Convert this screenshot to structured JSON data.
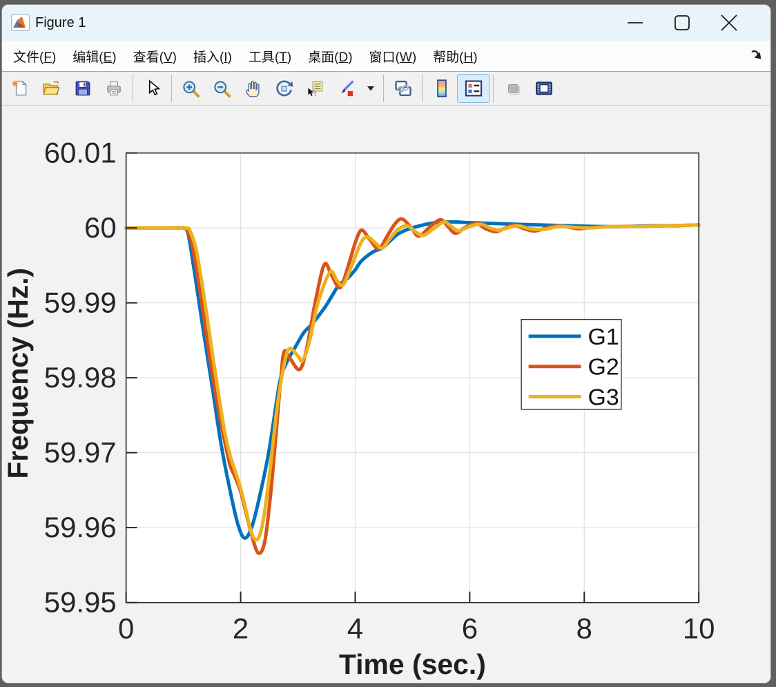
{
  "window": {
    "title": "Figure 1",
    "controls": [
      "minimize",
      "maximize",
      "close"
    ]
  },
  "menu": {
    "items": [
      {
        "label": "文件",
        "key": "F"
      },
      {
        "label": "编辑",
        "key": "E"
      },
      {
        "label": "查看",
        "key": "V"
      },
      {
        "label": "插入",
        "key": "I"
      },
      {
        "label": "工具",
        "key": "T"
      },
      {
        "label": "桌面",
        "key": "D"
      },
      {
        "label": "窗口",
        "key": "W"
      },
      {
        "label": "帮助",
        "key": "H"
      }
    ],
    "dock_arrow_icon": "dock-figure-arrow-icon"
  },
  "toolbar": {
    "icons": [
      "new-figure",
      "open-file",
      "save-figure",
      "print-figure",
      "edit-plot-pointer",
      "zoom-in",
      "zoom-out",
      "pan-hand",
      "rotate-3d",
      "data-cursor",
      "brush-data",
      "brush-dropdown",
      "link-plot",
      "insert-colorbar",
      "insert-legend",
      "disabled-tool",
      "show-plot-tools-dock"
    ],
    "active_icon": "insert-legend",
    "disabled_icons": [
      "disabled-tool"
    ]
  },
  "ui_colors": {
    "titlebar": "#e9f3fa",
    "toolbar_selection_bg": "#d9ecfb",
    "toolbar_selection_border": "#7fb8e6",
    "axis_color": "#262626",
    "grid_color": "#e0e0e0"
  },
  "chart_data": {
    "type": "line",
    "title": "",
    "xlabel": "Time (sec.)",
    "ylabel": "Frequency (Hz.)",
    "xlim": [
      0,
      10
    ],
    "ylim": [
      59.95,
      60.01
    ],
    "x_ticks": [
      0,
      2,
      4,
      6,
      8,
      10
    ],
    "x_tick_labels": [
      "0",
      "2",
      "4",
      "6",
      "8",
      "10"
    ],
    "y_ticks": [
      60.01,
      60,
      59.99,
      59.98,
      59.97,
      59.96,
      59.95
    ],
    "y_tick_labels": [
      "60.01",
      "60",
      "59.99",
      "59.98",
      "59.97",
      "59.96",
      "59.95"
    ],
    "grid": true,
    "legend": {
      "position": "right-center",
      "entries": [
        "G1",
        "G2",
        "G3"
      ]
    },
    "series": [
      {
        "name": "G1",
        "color": "#0072BD",
        "points": [
          [
            0,
            60
          ],
          [
            0.5,
            60
          ],
          [
            0.95,
            60
          ],
          [
            1.0,
            60
          ],
          [
            1.08,
            59.9993
          ],
          [
            1.2,
            59.9938
          ],
          [
            1.35,
            59.9862
          ],
          [
            1.5,
            59.979
          ],
          [
            1.65,
            59.9715
          ],
          [
            1.8,
            59.9655
          ],
          [
            1.95,
            59.9605
          ],
          [
            2.07,
            59.9586
          ],
          [
            2.2,
            59.9602
          ],
          [
            2.35,
            59.9648
          ],
          [
            2.5,
            59.9705
          ],
          [
            2.68,
            59.9793
          ],
          [
            2.8,
            59.982
          ],
          [
            2.94,
            59.9839
          ],
          [
            3.1,
            59.986
          ],
          [
            3.25,
            59.9872
          ],
          [
            3.47,
            59.9894
          ],
          [
            3.6,
            59.991
          ],
          [
            3.71,
            59.9923
          ],
          [
            3.87,
            59.9933
          ],
          [
            4.0,
            59.9944
          ],
          [
            4.11,
            59.9956
          ],
          [
            4.31,
            59.9968
          ],
          [
            4.47,
            59.9973
          ],
          [
            4.6,
            59.9982
          ],
          [
            4.75,
            59.9992
          ],
          [
            4.95,
            59.9999
          ],
          [
            5.19,
            60.0004
          ],
          [
            5.4,
            60.0007
          ],
          [
            5.7,
            60.0008
          ],
          [
            6.0,
            60.0007
          ],
          [
            6.4,
            60.0006
          ],
          [
            6.8,
            60.0005
          ],
          [
            7.2,
            60.0004
          ],
          [
            7.7,
            60.0003
          ],
          [
            8.2,
            60.0002
          ],
          [
            8.7,
            60.0002
          ],
          [
            9.2,
            60.0003
          ],
          [
            9.6,
            60.0003
          ],
          [
            10,
            60.0004
          ]
        ]
      },
      {
        "name": "G2",
        "color": "#D95319",
        "points": [
          [
            0,
            60
          ],
          [
            0.6,
            60
          ],
          [
            1.0,
            60
          ],
          [
            1.06,
            59.9997
          ],
          [
            1.15,
            59.9978
          ],
          [
            1.25,
            59.9935
          ],
          [
            1.35,
            59.9885
          ],
          [
            1.45,
            59.9832
          ],
          [
            1.55,
            59.9785
          ],
          [
            1.65,
            59.9742
          ],
          [
            1.75,
            59.9705
          ],
          [
            1.82,
            59.9682
          ],
          [
            1.9,
            59.9668
          ],
          [
            2.0,
            59.9648
          ],
          [
            2.1,
            59.9618
          ],
          [
            2.2,
            59.9588
          ],
          [
            2.31,
            59.9566
          ],
          [
            2.42,
            59.9581
          ],
          [
            2.52,
            59.9642
          ],
          [
            2.62,
            59.9727
          ],
          [
            2.7,
            59.9798
          ],
          [
            2.76,
            59.9835
          ],
          [
            2.86,
            59.9826
          ],
          [
            3.03,
            59.9811
          ],
          [
            3.15,
            59.9838
          ],
          [
            3.3,
            59.99
          ],
          [
            3.46,
            59.9951
          ],
          [
            3.58,
            59.9938
          ],
          [
            3.73,
            59.992
          ],
          [
            3.85,
            59.9942
          ],
          [
            4.0,
            59.998
          ],
          [
            4.11,
            59.9997
          ],
          [
            4.25,
            59.9985
          ],
          [
            4.41,
            59.9972
          ],
          [
            4.55,
            59.9988
          ],
          [
            4.7,
            60.0006
          ],
          [
            4.82,
            60.0012
          ],
          [
            4.97,
            60.0001
          ],
          [
            5.11,
            59.9989
          ],
          [
            5.3,
            60.0001
          ],
          [
            5.49,
            60.0011
          ],
          [
            5.62,
            60.0002
          ],
          [
            5.75,
            59.9993
          ],
          [
            5.93,
            60.0001
          ],
          [
            6.11,
            60.0006
          ],
          [
            6.28,
            59.9999
          ],
          [
            6.45,
            59.9995
          ],
          [
            6.6,
            59.9999
          ],
          [
            6.77,
            60.0004
          ],
          [
            6.95,
            59.9999
          ],
          [
            7.15,
            59.9996
          ],
          [
            7.43,
            60.0002
          ],
          [
            7.65,
            60.0002
          ],
          [
            7.9,
            59.9999
          ],
          [
            8.2,
            60.0001
          ],
          [
            8.6,
            60.0002
          ],
          [
            9.0,
            60.0002
          ],
          [
            9.5,
            60.0003
          ],
          [
            10,
            60.0004
          ]
        ]
      },
      {
        "name": "G3",
        "color": "#EDB120",
        "points": [
          [
            0,
            60
          ],
          [
            0.6,
            60
          ],
          [
            1.04,
            60
          ],
          [
            1.12,
            59.9995
          ],
          [
            1.22,
            59.9972
          ],
          [
            1.32,
            59.9928
          ],
          [
            1.42,
            59.9878
          ],
          [
            1.52,
            59.9825
          ],
          [
            1.62,
            59.9775
          ],
          [
            1.72,
            59.9728
          ],
          [
            1.82,
            59.9695
          ],
          [
            1.92,
            59.9672
          ],
          [
            2.0,
            59.9652
          ],
          [
            2.08,
            59.9628
          ],
          [
            2.16,
            59.9601
          ],
          [
            2.24,
            59.9585
          ],
          [
            2.33,
            59.9589
          ],
          [
            2.42,
            59.9622
          ],
          [
            2.52,
            59.9682
          ],
          [
            2.65,
            59.9768
          ],
          [
            2.78,
            59.9825
          ],
          [
            2.86,
            59.9839
          ],
          [
            3.0,
            59.9829
          ],
          [
            3.08,
            59.9823
          ],
          [
            3.2,
            59.9848
          ],
          [
            3.35,
            59.99
          ],
          [
            3.56,
            59.9941
          ],
          [
            3.68,
            59.993
          ],
          [
            3.79,
            59.9924
          ],
          [
            3.95,
            59.9952
          ],
          [
            4.1,
            59.998
          ],
          [
            4.21,
            59.9988
          ],
          [
            4.35,
            59.998
          ],
          [
            4.47,
            59.9973
          ],
          [
            4.6,
            59.9985
          ],
          [
            4.75,
            59.9998
          ],
          [
            4.91,
            60.0003
          ],
          [
            5.05,
            59.9995
          ],
          [
            5.19,
            59.999
          ],
          [
            5.35,
            59.9998
          ],
          [
            5.55,
            60.0008
          ],
          [
            5.68,
            60.0002
          ],
          [
            5.8,
            59.9996
          ],
          [
            6.0,
            60.0002
          ],
          [
            6.2,
            60.0005
          ],
          [
            6.38,
            59.9999
          ],
          [
            6.52,
            59.9997
          ],
          [
            6.7,
            60.0001
          ],
          [
            6.85,
            60.0003
          ],
          [
            7.05,
            59.9999
          ],
          [
            7.3,
            59.9998
          ],
          [
            7.55,
            60.0002
          ],
          [
            7.8,
            60.0001
          ],
          [
            8.1,
            60.0
          ],
          [
            8.5,
            60.0002
          ],
          [
            9.0,
            60.0002
          ],
          [
            9.5,
            60.0003
          ],
          [
            10,
            60.0004
          ]
        ]
      }
    ]
  }
}
